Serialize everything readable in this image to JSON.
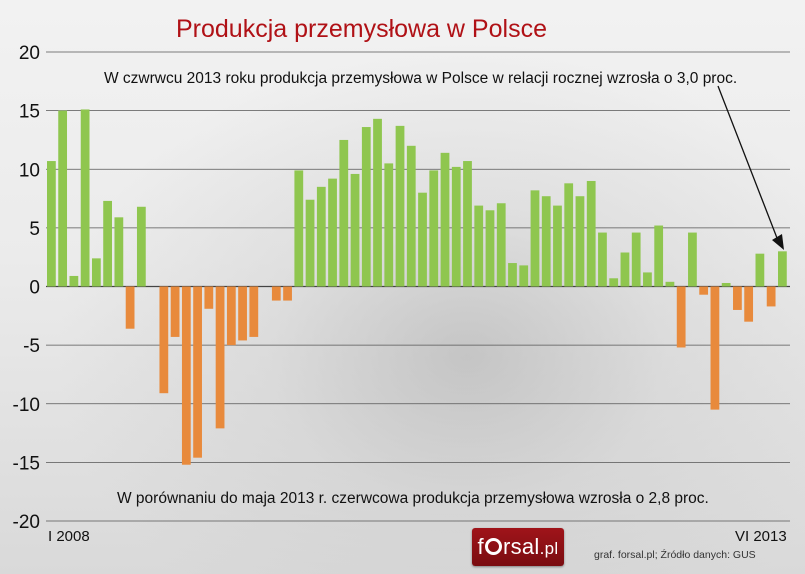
{
  "chart_data": {
    "type": "bar",
    "title": "Produkcja przemysłowa w Polsce",
    "annotations": [
      "W czwrwcu 2013 roku produkcja przemysłowa w Polsce w relacji rocznej wzrosła o 3,0 proc.",
      "W porównaniu do maja 2013 r. czerwcowa produkcja przemysłowa wzrosła o 2,8 proc."
    ],
    "x_start_label": "I 2008",
    "x_end_label": "VI 2013",
    "ylim": [
      -20,
      20
    ],
    "yticks": [
      "20",
      "15",
      "10",
      "5",
      "0",
      "-5",
      "-10",
      "-15",
      "-20"
    ],
    "grid": true,
    "positive_color": "#8fc64f",
    "negative_color": "#e88a3c",
    "values": [
      10.7,
      15.0,
      0.9,
      15.1,
      2.4,
      7.3,
      5.9,
      -3.6,
      6.8,
      0.0,
      -9.1,
      -4.3,
      -15.2,
      -14.6,
      -1.9,
      -12.1,
      -5.0,
      -4.6,
      -4.3,
      0.0,
      -1.2,
      -1.2,
      9.9,
      7.4,
      8.5,
      9.2,
      12.5,
      9.6,
      13.6,
      14.3,
      10.5,
      13.7,
      12.0,
      8.0,
      9.9,
      11.4,
      10.2,
      10.7,
      6.9,
      6.5,
      7.1,
      2.0,
      1.8,
      8.2,
      7.7,
      6.9,
      8.8,
      7.7,
      9.0,
      4.6,
      0.7,
      2.9,
      4.6,
      1.2,
      5.2,
      0.4,
      -5.2,
      4.6,
      -0.7,
      -10.5,
      0.3,
      -2.0,
      -3.0,
      2.8,
      -1.7,
      3.0
    ]
  },
  "branding": {
    "logo_text_pre": "f",
    "logo_text_mid": "rsal",
    "logo_text_post": ".pl",
    "source": "graf. forsal.pl;  Źródło danych: GUS"
  }
}
